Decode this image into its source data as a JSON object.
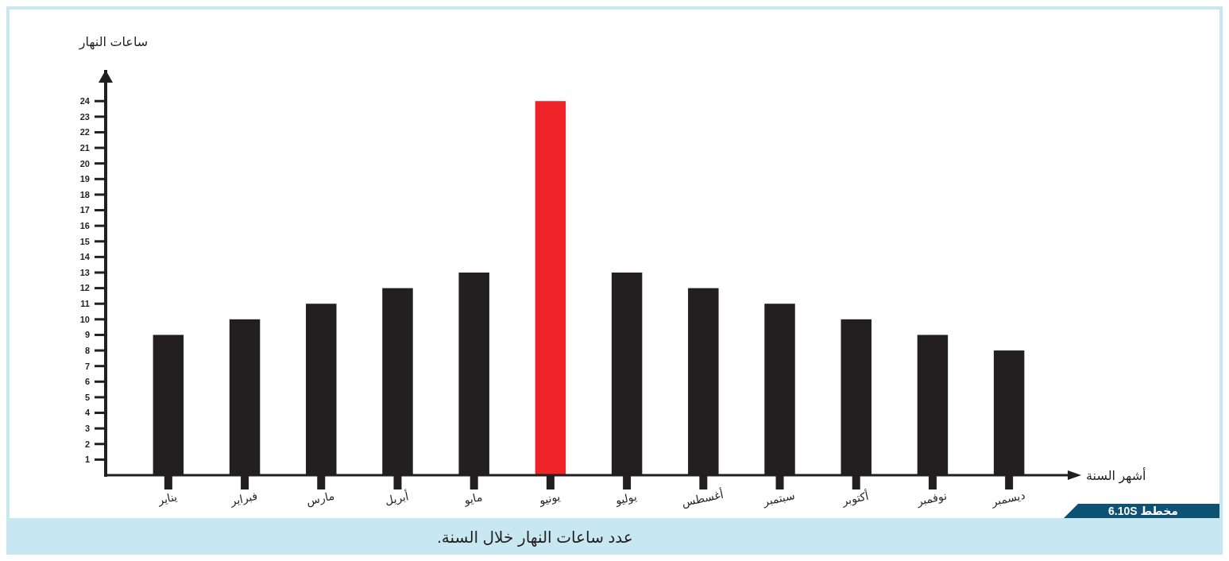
{
  "chart_data": {
    "type": "bar",
    "ylabel": "ساعات النهار",
    "xlabel": "أشهر السنة",
    "categories": [
      "يناير",
      "فبراير",
      "مارس",
      "أبريل",
      "مايو",
      "يونيو",
      "يوليو",
      "أغسطس",
      "سبتمبر",
      "أكتوبر",
      "نوفمبر",
      "ديسمبر"
    ],
    "values": [
      9,
      10,
      11,
      12,
      13,
      24,
      13,
      12,
      11,
      10,
      9,
      8
    ],
    "colors": [
      "#231f20",
      "#231f20",
      "#231f20",
      "#231f20",
      "#231f20",
      "#ee2428",
      "#231f20",
      "#231f20",
      "#231f20",
      "#231f20",
      "#231f20",
      "#231f20"
    ],
    "ylim": [
      0,
      26
    ],
    "yticks": [
      1,
      2,
      3,
      4,
      5,
      6,
      7,
      8,
      9,
      10,
      11,
      12,
      13,
      14,
      15,
      16,
      17,
      18,
      19,
      20,
      21,
      22,
      23,
      24
    ],
    "grid": false,
    "annotations": [
      "مخطط 6.10S",
      "عدد ساعات النهار خلال السنة."
    ]
  }
}
